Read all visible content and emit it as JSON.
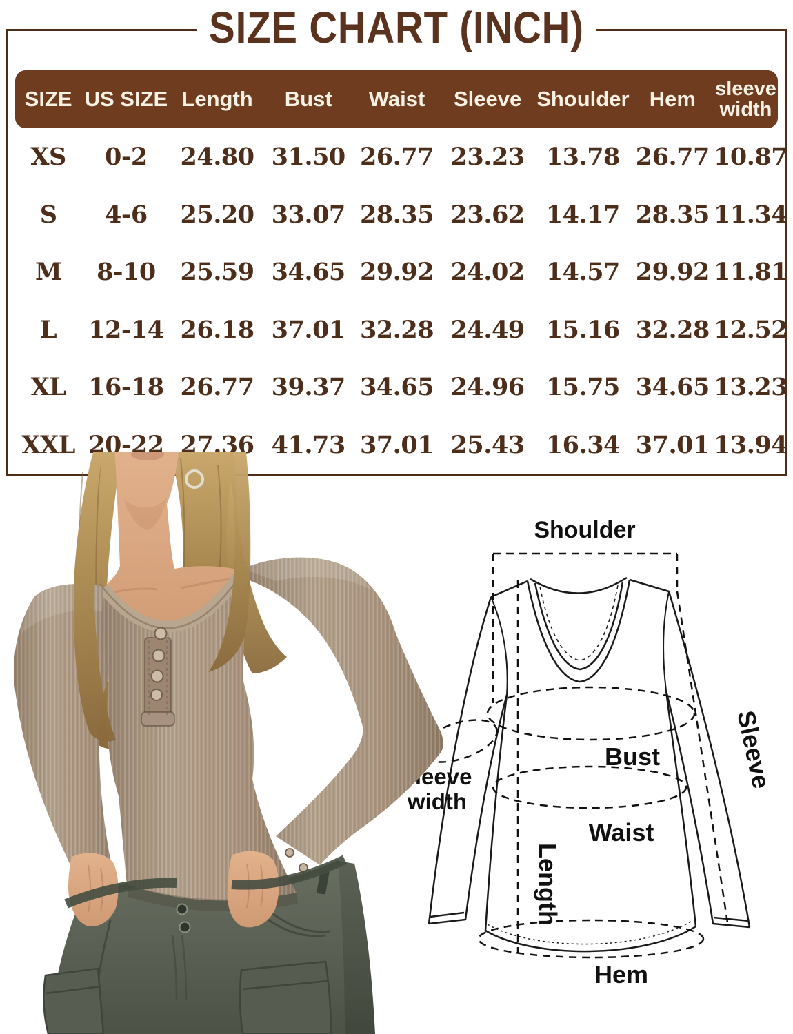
{
  "title": {
    "text": "SIZE CHART (INCH)"
  },
  "chart_data": {
    "type": "table",
    "title": "SIZE CHART (INCH)",
    "unit": "inch",
    "columns": [
      "SIZE",
      "US SIZE",
      "Length",
      "Bust",
      "Waist",
      "Sleeve",
      "Shoulder",
      "Hem",
      "sleeve width"
    ],
    "rows": [
      [
        "XS",
        "0-2",
        "24.80",
        "31.50",
        "26.77",
        "23.23",
        "13.78",
        "26.77",
        "10.87"
      ],
      [
        "S",
        "4-6",
        "25.20",
        "33.07",
        "28.35",
        "23.62",
        "14.17",
        "28.35",
        "11.34"
      ],
      [
        "M",
        "8-10",
        "25.59",
        "34.65",
        "29.92",
        "24.02",
        "14.57",
        "29.92",
        "11.81"
      ],
      [
        "L",
        "12-14",
        "26.18",
        "37.01",
        "32.28",
        "24.49",
        "15.16",
        "32.28",
        "12.52"
      ],
      [
        "XL",
        "16-18",
        "26.77",
        "39.37",
        "34.65",
        "24.96",
        "15.75",
        "34.65",
        "13.23"
      ],
      [
        "XXL",
        "20-22",
        "27.36",
        "41.73",
        "37.01",
        "25.43",
        "16.34",
        "37.01",
        "13.94"
      ]
    ]
  },
  "measure_diagram": {
    "labels": {
      "shoulder": "Shoulder",
      "bust": "Bust",
      "waist": "Waist",
      "length": "Length",
      "hem": "Hem",
      "sleeve": "Sleeve",
      "sleeve_width_line1": "sleeve",
      "sleeve_width_line2": "width"
    }
  },
  "colors": {
    "title_brown": "#5a321d",
    "frame_border": "#4f2d18",
    "header_bg": "#6f3c20",
    "header_text": "#f7f1e4",
    "cell_text": "#4d2e1b",
    "shirt_taupe": "#a8927d",
    "pants_gray": "#5d6357",
    "skin": "#d9a988",
    "hair": "#b08d52",
    "diagram_line": "#1a1a1a"
  }
}
